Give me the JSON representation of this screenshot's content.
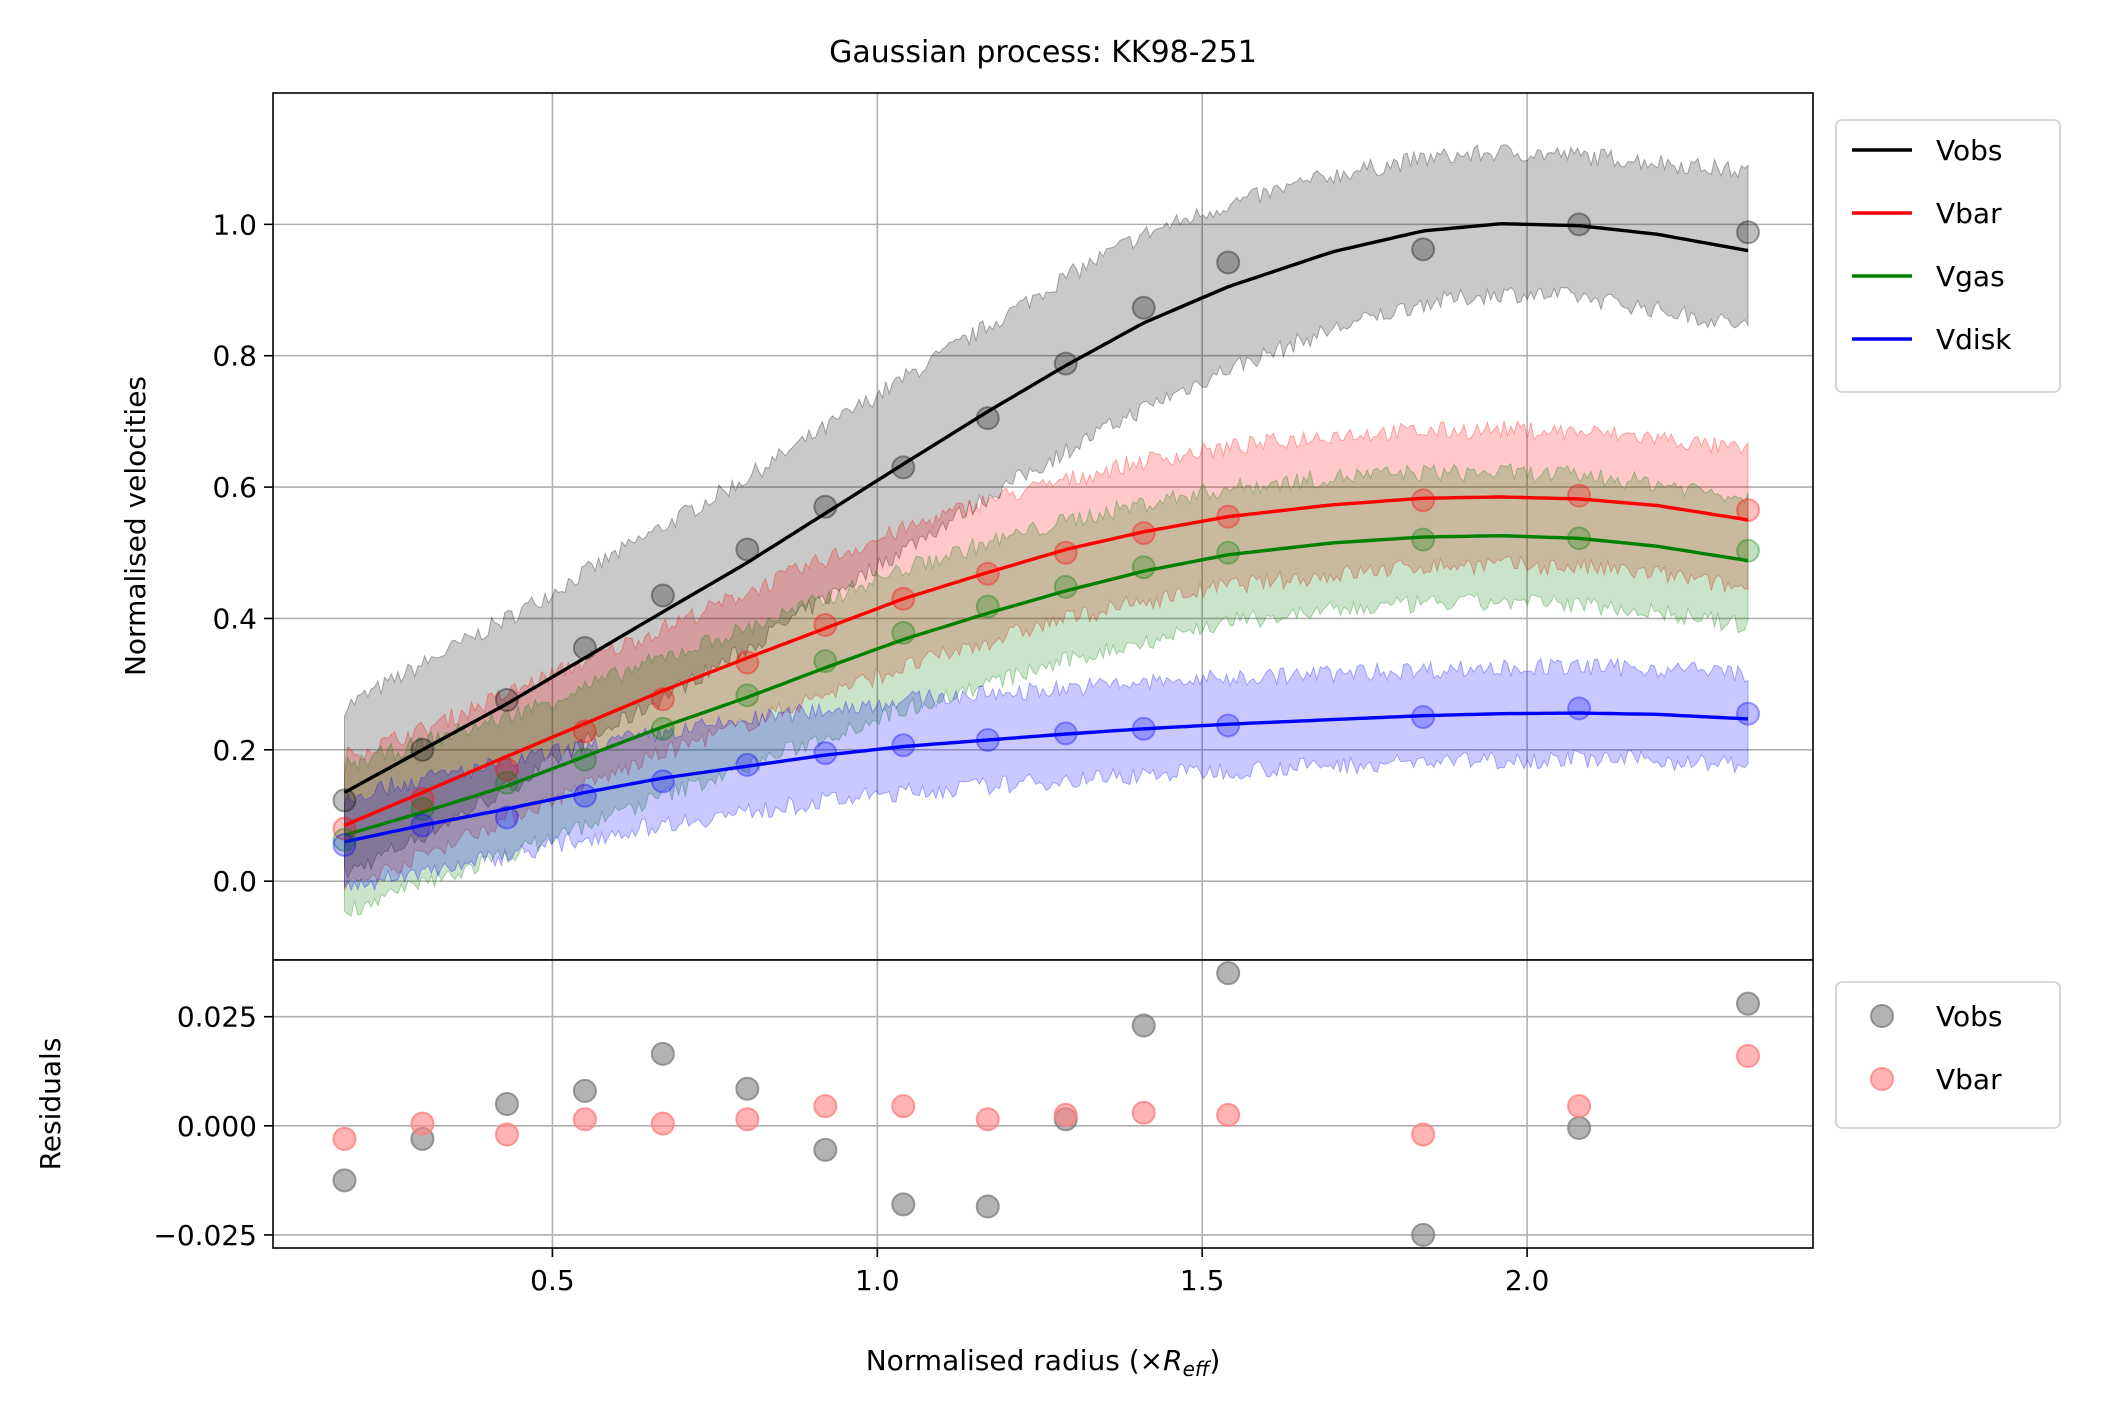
{
  "chart_data": {
    "type": "line",
    "title": "Gaussian process: KK98-251",
    "xlabel": "Normalised radius (×R_eff)",
    "xlabel_text": "Normalised radius (×",
    "xlabel_italic": "R",
    "xlabel_sub": "eff",
    "xlabel_close": ")",
    "xlim": [
      0.07,
      2.44
    ],
    "xticks": [
      0.5,
      1.0,
      1.5,
      2.0
    ],
    "xtick_labels": [
      "0.5",
      "1.0",
      "1.5",
      "2.0"
    ],
    "grid": true,
    "x": [
      0.18,
      0.3,
      0.43,
      0.55,
      0.67,
      0.8,
      0.92,
      1.04,
      1.17,
      1.29,
      1.41,
      1.54,
      1.84,
      2.08,
      2.34
    ],
    "main_panel": {
      "ylabel": "Normalised velocities",
      "ylim": [
        -0.12,
        1.2
      ],
      "yticks": [
        0.0,
        0.2,
        0.4,
        0.6,
        0.8,
        1.0
      ],
      "ytick_labels": [
        "0.0",
        "0.2",
        "0.4",
        "0.6",
        "0.8",
        "1.0"
      ],
      "legend_position": "outside-upper-right",
      "series": [
        {
          "name": "Vobs",
          "color": "#000000",
          "points": [
            0.123,
            0.2,
            0.276,
            0.355,
            0.435,
            0.505,
            0.57,
            0.63,
            0.705,
            0.788,
            0.873,
            0.942,
            0.962,
            1.0,
            0.988
          ],
          "fit_x": [
            0.18,
            0.3,
            0.43,
            0.55,
            0.67,
            0.8,
            0.92,
            1.04,
            1.17,
            1.29,
            1.41,
            1.54,
            1.7,
            1.84,
            1.96,
            2.08,
            2.2,
            2.34
          ],
          "fit_y": [
            0.135,
            0.2,
            0.27,
            0.34,
            0.41,
            0.485,
            0.56,
            0.635,
            0.715,
            0.785,
            0.85,
            0.905,
            0.958,
            0.99,
            1.001,
            0.998,
            0.985,
            0.96
          ],
          "band_upper": [
            0.265,
            0.33,
            0.4,
            0.47,
            0.54,
            0.615,
            0.69,
            0.765,
            0.845,
            0.92,
            0.985,
            1.03,
            1.075,
            1.1,
            1.11,
            1.105,
            1.095,
            1.08
          ],
          "band_lower": [
            0.01,
            0.07,
            0.14,
            0.21,
            0.28,
            0.355,
            0.43,
            0.505,
            0.585,
            0.655,
            0.72,
            0.78,
            0.84,
            0.88,
            0.895,
            0.89,
            0.87,
            0.845
          ]
        },
        {
          "name": "Vbar",
          "color": "#ff0000",
          "points": [
            0.08,
            0.125,
            0.17,
            0.228,
            0.277,
            0.333,
            0.39,
            0.43,
            0.468,
            0.5,
            0.53,
            0.555,
            0.58,
            0.587,
            0.565
          ],
          "fit_x": [
            0.18,
            0.3,
            0.43,
            0.55,
            0.67,
            0.8,
            0.92,
            1.04,
            1.17,
            1.29,
            1.41,
            1.54,
            1.7,
            1.84,
            1.96,
            2.08,
            2.2,
            2.34
          ],
          "fit_y": [
            0.085,
            0.135,
            0.19,
            0.24,
            0.29,
            0.34,
            0.385,
            0.43,
            0.47,
            0.505,
            0.532,
            0.555,
            0.573,
            0.583,
            0.585,
            0.582,
            0.572,
            0.55
          ],
          "band_upper": [
            0.19,
            0.23,
            0.285,
            0.335,
            0.385,
            0.44,
            0.49,
            0.535,
            0.58,
            0.61,
            0.64,
            0.66,
            0.68,
            0.685,
            0.688,
            0.684,
            0.675,
            0.655
          ],
          "band_lower": [
            -0.01,
            0.04,
            0.095,
            0.145,
            0.195,
            0.24,
            0.285,
            0.325,
            0.365,
            0.4,
            0.425,
            0.45,
            0.466,
            0.48,
            0.482,
            0.478,
            0.468,
            0.445
          ]
        },
        {
          "name": "Vgas",
          "color": "#008000",
          "points": [
            0.063,
            0.11,
            0.15,
            0.185,
            0.232,
            0.283,
            0.335,
            0.378,
            0.418,
            0.448,
            0.478,
            0.5,
            0.52,
            0.522,
            0.503
          ],
          "fit_x": [
            0.18,
            0.3,
            0.43,
            0.55,
            0.67,
            0.8,
            0.92,
            1.04,
            1.17,
            1.29,
            1.41,
            1.54,
            1.7,
            1.84,
            1.96,
            2.08,
            2.2,
            2.34
          ],
          "fit_y": [
            0.07,
            0.105,
            0.145,
            0.19,
            0.235,
            0.28,
            0.325,
            0.368,
            0.408,
            0.442,
            0.472,
            0.497,
            0.515,
            0.524,
            0.526,
            0.522,
            0.51,
            0.488
          ],
          "band_upper": [
            0.175,
            0.21,
            0.25,
            0.295,
            0.34,
            0.385,
            0.43,
            0.475,
            0.515,
            0.548,
            0.575,
            0.598,
            0.615,
            0.622,
            0.622,
            0.618,
            0.606,
            0.585
          ],
          "band_lower": [
            -0.045,
            -0.005,
            0.04,
            0.085,
            0.13,
            0.175,
            0.22,
            0.262,
            0.3,
            0.335,
            0.365,
            0.395,
            0.412,
            0.422,
            0.425,
            0.422,
            0.41,
            0.388
          ]
        },
        {
          "name": "Vdisk",
          "color": "#0000ff",
          "points": [
            0.055,
            0.085,
            0.097,
            0.13,
            0.152,
            0.177,
            0.195,
            0.207,
            0.215,
            0.225,
            0.232,
            0.237,
            0.25,
            0.263,
            0.255
          ],
          "fit_x": [
            0.18,
            0.3,
            0.43,
            0.55,
            0.67,
            0.8,
            0.92,
            1.04,
            1.17,
            1.29,
            1.41,
            1.54,
            1.7,
            1.84,
            1.96,
            2.08,
            2.2,
            2.34
          ],
          "fit_y": [
            0.06,
            0.085,
            0.11,
            0.135,
            0.157,
            0.175,
            0.192,
            0.205,
            0.215,
            0.224,
            0.232,
            0.239,
            0.246,
            0.252,
            0.255,
            0.256,
            0.254,
            0.247
          ],
          "band_upper": [
            0.13,
            0.155,
            0.18,
            0.205,
            0.225,
            0.245,
            0.262,
            0.275,
            0.285,
            0.294,
            0.302,
            0.309,
            0.316,
            0.322,
            0.325,
            0.326,
            0.324,
            0.317
          ],
          "band_lower": [
            -0.01,
            0.015,
            0.04,
            0.065,
            0.087,
            0.105,
            0.122,
            0.135,
            0.145,
            0.154,
            0.162,
            0.169,
            0.176,
            0.182,
            0.185,
            0.186,
            0.184,
            0.177
          ]
        }
      ]
    },
    "residual_panel": {
      "ylabel": "Residuals",
      "ylim": [
        -0.028,
        0.038
      ],
      "yticks": [
        -0.025,
        0.0,
        0.025
      ],
      "ytick_labels": [
        "−0.025",
        "0.000",
        "0.025"
      ],
      "legend_position": "outside-upper-right",
      "series": [
        {
          "name": "Vobs",
          "color": "#808080",
          "values": [
            -0.0125,
            -0.003,
            0.005,
            0.008,
            0.0165,
            0.0085,
            -0.0055,
            -0.018,
            -0.0185,
            0.0015,
            0.023,
            0.035,
            -0.025,
            -0.0005,
            0.028
          ]
        },
        {
          "name": "Vbar",
          "color": "#ff8080",
          "values": [
            -0.003,
            0.0005,
            -0.002,
            0.0015,
            0.0005,
            0.0015,
            0.0045,
            0.0045,
            0.0015,
            0.0025,
            0.003,
            0.0025,
            -0.002,
            0.0045,
            0.016
          ]
        }
      ]
    }
  }
}
